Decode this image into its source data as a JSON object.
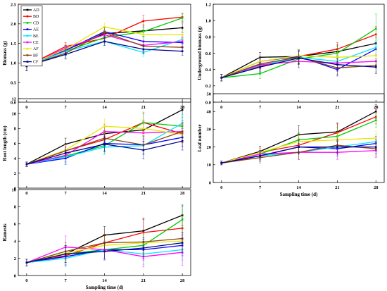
{
  "chart_data": [
    {
      "type": "line",
      "title": "",
      "xlabel": "",
      "ylabel": "Biomass (g)",
      "x": [
        0,
        7,
        14,
        21,
        28
      ],
      "xlim": [
        -1.5,
        29.5
      ],
      "ylim": [
        0.0,
        2.5
      ],
      "yticks": [
        0.0,
        0.5,
        1.0,
        1.5,
        2.0,
        2.5
      ],
      "ytick_decimals": 1,
      "grid": false,
      "legend_position": "top-left",
      "series": [
        {
          "name": "AD",
          "color": "#000000",
          "values": [
            0.92,
            1.33,
            1.75,
            1.82,
            1.9
          ],
          "err": [
            0.12,
            0.12,
            0.08,
            0.15,
            0.12
          ]
        },
        {
          "name": "BD",
          "color": "#ff0000",
          "values": [
            0.92,
            1.42,
            1.63,
            2.07,
            2.17
          ],
          "err": [
            0.12,
            0.1,
            0.12,
            0.15,
            0.1
          ]
        },
        {
          "name": "CD",
          "color": "#00cc00",
          "values": [
            0.92,
            1.3,
            1.65,
            1.8,
            2.15
          ],
          "err": [
            0.12,
            0.12,
            0.12,
            0.12,
            0.1
          ]
        },
        {
          "name": "AE",
          "color": "#0000ff",
          "values": [
            0.92,
            1.32,
            1.8,
            1.55,
            1.52
          ],
          "err": [
            0.12,
            0.12,
            0.12,
            0.12,
            0.12
          ]
        },
        {
          "name": "BE",
          "color": "#00e5ff",
          "values": [
            0.92,
            1.3,
            1.55,
            1.27,
            1.6
          ],
          "err": [
            0.12,
            0.12,
            0.1,
            0.1,
            0.12
          ]
        },
        {
          "name": "CE",
          "color": "#ff00ff",
          "values": [
            0.92,
            1.38,
            1.72,
            1.45,
            1.55
          ],
          "err": [
            0.12,
            0.1,
            0.1,
            0.12,
            0.12
          ]
        },
        {
          "name": "AF",
          "color": "#e8e800",
          "values": [
            0.92,
            1.35,
            1.92,
            1.73,
            1.72
          ],
          "err": [
            0.12,
            0.12,
            0.1,
            0.12,
            0.12
          ]
        },
        {
          "name": "BF",
          "color": "#8b4513",
          "values": [
            0.92,
            1.25,
            1.78,
            1.43,
            1.4
          ],
          "err": [
            0.12,
            0.12,
            0.12,
            0.12,
            0.1
          ]
        },
        {
          "name": "CF",
          "color": "#00008b",
          "values": [
            0.92,
            1.22,
            1.55,
            1.35,
            1.3
          ],
          "err": [
            0.12,
            0.12,
            0.1,
            0.12,
            0.1
          ]
        }
      ]
    },
    {
      "type": "line",
      "title": "",
      "xlabel": "",
      "ylabel": "Underground biomass (g)",
      "x": [
        0,
        7,
        14,
        21,
        28
      ],
      "xlim": [
        -1.5,
        29.5
      ],
      "ylim": [
        0.0,
        1.2
      ],
      "yticks": [
        0.0,
        0.2,
        0.4,
        0.6,
        0.8,
        1.0,
        1.2
      ],
      "ytick_decimals": 1,
      "grid": false,
      "series": [
        {
          "name": "AD",
          "color": "#000000",
          "values": [
            0.3,
            0.55,
            0.56,
            0.62,
            0.72
          ],
          "err": [
            0.04,
            0.06,
            0.08,
            0.08,
            0.08
          ]
        },
        {
          "name": "BD",
          "color": "#ff0000",
          "values": [
            0.3,
            0.44,
            0.56,
            0.65,
            0.83
          ],
          "err": [
            0.04,
            0.06,
            0.08,
            0.08,
            0.1
          ]
        },
        {
          "name": "CD",
          "color": "#00cc00",
          "values": [
            0.3,
            0.35,
            0.53,
            0.6,
            0.9
          ],
          "err": [
            0.04,
            0.06,
            0.1,
            0.08,
            0.18
          ]
        },
        {
          "name": "AE",
          "color": "#0000ff",
          "values": [
            0.3,
            0.5,
            0.56,
            0.4,
            0.65
          ],
          "err": [
            0.04,
            0.06,
            0.08,
            0.08,
            0.08
          ]
        },
        {
          "name": "BE",
          "color": "#00e5ff",
          "values": [
            0.3,
            0.45,
            0.55,
            0.5,
            0.67
          ],
          "err": [
            0.04,
            0.06,
            0.08,
            0.08,
            0.08
          ]
        },
        {
          "name": "CE",
          "color": "#ff00ff",
          "values": [
            0.3,
            0.46,
            0.5,
            0.48,
            0.5
          ],
          "err": [
            0.04,
            0.06,
            0.08,
            0.08,
            0.08
          ]
        },
        {
          "name": "AF",
          "color": "#e8e800",
          "values": [
            0.3,
            0.5,
            0.57,
            0.55,
            0.57
          ],
          "err": [
            0.04,
            0.06,
            0.08,
            0.08,
            0.08
          ]
        },
        {
          "name": "BF",
          "color": "#8b4513",
          "values": [
            0.3,
            0.47,
            0.55,
            0.42,
            0.45
          ],
          "err": [
            0.04,
            0.06,
            0.08,
            0.08,
            0.08
          ]
        },
        {
          "name": "CF",
          "color": "#00008b",
          "values": [
            0.3,
            0.43,
            0.54,
            0.46,
            0.43
          ],
          "err": [
            0.04,
            0.06,
            0.08,
            0.08,
            0.08
          ]
        }
      ]
    },
    {
      "type": "line",
      "title": "",
      "xlabel": "",
      "ylabel": "Root length (cm)",
      "x": [
        0,
        7,
        14,
        21,
        28
      ],
      "xlim": [
        -1.5,
        29.5
      ],
      "ylim": [
        0,
        12
      ],
      "yticks": [
        0,
        2,
        4,
        6,
        8,
        10,
        12
      ],
      "ytick_decimals": 0,
      "grid": false,
      "series": [
        {
          "name": "AD",
          "color": "#000000",
          "values": [
            3.2,
            5.9,
            7.3,
            7.8,
            10.5
          ],
          "err": [
            0.3,
            0.8,
            1.0,
            1.2,
            1.5
          ]
        },
        {
          "name": "BD",
          "color": "#ff0000",
          "values": [
            3.2,
            5.0,
            6.5,
            8.8,
            7.3
          ],
          "err": [
            0.3,
            0.8,
            1.0,
            1.2,
            1.2
          ]
        },
        {
          "name": "CD",
          "color": "#00cc00",
          "values": [
            3.2,
            4.3,
            5.7,
            8.8,
            8.3
          ],
          "err": [
            0.3,
            0.8,
            1.0,
            1.4,
            1.2
          ]
        },
        {
          "name": "AE",
          "color": "#0000ff",
          "values": [
            3.2,
            4.0,
            6.0,
            5.8,
            6.8
          ],
          "err": [
            0.3,
            0.8,
            1.0,
            1.2,
            1.2
          ]
        },
        {
          "name": "BE",
          "color": "#00e5ff",
          "values": [
            3.2,
            4.2,
            5.5,
            5.7,
            8.7
          ],
          "err": [
            0.3,
            0.8,
            1.0,
            1.2,
            1.2
          ]
        },
        {
          "name": "CE",
          "color": "#ff00ff",
          "values": [
            3.2,
            4.4,
            7.6,
            7.4,
            7.6
          ],
          "err": [
            0.3,
            0.8,
            1.0,
            1.2,
            1.2
          ]
        },
        {
          "name": "AF",
          "color": "#e8e800",
          "values": [
            3.2,
            5.1,
            8.3,
            8.0,
            7.2
          ],
          "err": [
            0.3,
            0.8,
            1.0,
            1.2,
            1.2
          ]
        },
        {
          "name": "BF",
          "color": "#8b4513",
          "values": [
            3.2,
            5.0,
            6.7,
            5.8,
            7.6
          ],
          "err": [
            0.3,
            0.8,
            1.0,
            1.2,
            1.2
          ]
        },
        {
          "name": "CF",
          "color": "#00008b",
          "values": [
            3.2,
            4.7,
            5.9,
            5.1,
            6.3
          ],
          "err": [
            0.3,
            0.8,
            1.0,
            1.2,
            1.2
          ]
        }
      ]
    },
    {
      "type": "line",
      "title": "",
      "xlabel": "Sampling time (d)",
      "ylabel": "Leaf number",
      "x": [
        0,
        7,
        14,
        21,
        28
      ],
      "xlim": [
        -1.5,
        29.5
      ],
      "ylim": [
        0,
        50
      ],
      "yticks": [
        0,
        10,
        20,
        30,
        40,
        50
      ],
      "ytick_decimals": 0,
      "grid": false,
      "series": [
        {
          "name": "AD",
          "color": "#000000",
          "values": [
            11,
            17.5,
            27,
            28.5,
            40
          ],
          "err": [
            1,
            3,
            5,
            5,
            4
          ]
        },
        {
          "name": "BD",
          "color": "#ff0000",
          "values": [
            11,
            17,
            21,
            28,
            37
          ],
          "err": [
            1,
            3,
            4,
            5,
            4
          ]
        },
        {
          "name": "CD",
          "color": "#00cc00",
          "values": [
            11,
            16,
            24,
            26,
            35
          ],
          "err": [
            1,
            3,
            4,
            5,
            4
          ]
        },
        {
          "name": "AE",
          "color": "#0000ff",
          "values": [
            11,
            15,
            20,
            19,
            22
          ],
          "err": [
            1,
            3,
            4,
            4,
            4
          ]
        },
        {
          "name": "BE",
          "color": "#00e5ff",
          "values": [
            11,
            15,
            17,
            20,
            23
          ],
          "err": [
            1,
            3,
            4,
            4,
            4
          ]
        },
        {
          "name": "CE",
          "color": "#ff00ff",
          "values": [
            11,
            16,
            17,
            17,
            18
          ],
          "err": [
            1,
            3,
            4,
            4,
            4
          ]
        },
        {
          "name": "AF",
          "color": "#e8e800",
          "values": [
            11,
            17,
            23,
            24,
            25
          ],
          "err": [
            1,
            3,
            4,
            4,
            4
          ]
        },
        {
          "name": "BF",
          "color": "#8b4513",
          "values": [
            11,
            14,
            17,
            21,
            19
          ],
          "err": [
            1,
            3,
            4,
            4,
            4
          ]
        },
        {
          "name": "CF",
          "color": "#00008b",
          "values": [
            11,
            15,
            20,
            20,
            20
          ],
          "err": [
            1,
            3,
            4,
            4,
            4
          ]
        }
      ]
    },
    {
      "type": "line",
      "title": "",
      "xlabel": "Sampling time (d)",
      "ylabel": "Ramests",
      "x": [
        0,
        7,
        14,
        21,
        28
      ],
      "xlim": [
        -1.5,
        29.5
      ],
      "ylim": [
        0,
        10
      ],
      "yticks": [
        0,
        2,
        4,
        6,
        8,
        10
      ],
      "ytick_decimals": 0,
      "grid": false,
      "series": [
        {
          "name": "AD",
          "color": "#000000",
          "values": [
            1.5,
            2.5,
            4.7,
            5.2,
            7.0
          ],
          "err": [
            0.4,
            1.0,
            1.0,
            1.5,
            1.2
          ]
        },
        {
          "name": "BD",
          "color": "#ff0000",
          "values": [
            1.5,
            2.3,
            3.8,
            5.0,
            5.5
          ],
          "err": [
            0.4,
            1.0,
            1.0,
            1.5,
            1.2
          ]
        },
        {
          "name": "CD",
          "color": "#00cc00",
          "values": [
            1.5,
            2.5,
            3.0,
            3.5,
            6.5
          ],
          "err": [
            0.4,
            1.0,
            1.0,
            1.2,
            1.5
          ]
        },
        {
          "name": "AE",
          "color": "#0000ff",
          "values": [
            1.5,
            2.2,
            3.0,
            3.0,
            3.5
          ],
          "err": [
            0.4,
            1.0,
            1.0,
            1.2,
            1.2
          ]
        },
        {
          "name": "BE",
          "color": "#00e5ff",
          "values": [
            1.5,
            2.0,
            3.0,
            2.5,
            3.0
          ],
          "err": [
            0.4,
            1.0,
            1.0,
            1.2,
            1.2
          ]
        },
        {
          "name": "CE",
          "color": "#ff00ff",
          "values": [
            1.5,
            3.3,
            3.0,
            2.2,
            2.7
          ],
          "err": [
            0.4,
            1.3,
            1.0,
            1.2,
            1.5
          ]
        },
        {
          "name": "AF",
          "color": "#e8e800",
          "values": [
            1.5,
            2.6,
            3.5,
            3.8,
            4.0
          ],
          "err": [
            0.4,
            1.0,
            1.0,
            1.2,
            1.2
          ]
        },
        {
          "name": "BF",
          "color": "#8b4513",
          "values": [
            1.5,
            2.8,
            3.8,
            3.9,
            4.3
          ],
          "err": [
            0.4,
            1.0,
            1.0,
            1.2,
            1.2
          ]
        },
        {
          "name": "CF",
          "color": "#00008b",
          "values": [
            1.5,
            2.5,
            2.8,
            3.2,
            3.8
          ],
          "err": [
            0.4,
            1.0,
            1.0,
            1.2,
            1.2
          ]
        }
      ]
    }
  ]
}
